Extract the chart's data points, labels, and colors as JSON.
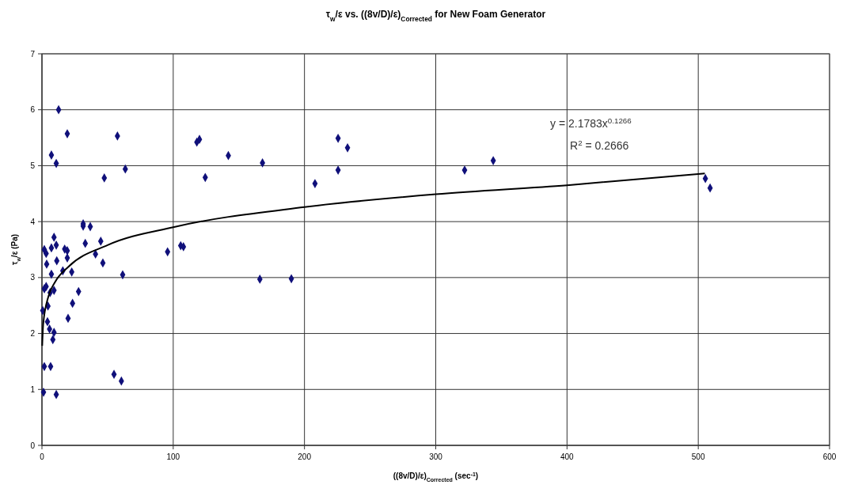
{
  "chart_data": {
    "type": "scatter",
    "title": "τ$_{w}$/ε  vs. ((8v/D)/ε)$_{Corrected}$ for New Foam Generator",
    "xlabel": "((8v/D)/ε)$_{Corrected}$ (sec$^{-1}$)",
    "ylabel": "τ$_{w}$/ε (Pa)",
    "xlim": [
      0,
      600
    ],
    "xticks": [
      0,
      100,
      200,
      300,
      400,
      500,
      600
    ],
    "ylim": [
      0,
      7
    ],
    "yticks": [
      0,
      1,
      2,
      3,
      4,
      5,
      6,
      7
    ],
    "grid": true,
    "annotations": [
      "y = 2.1783x$^{0.1266}$",
      "R$^{2}$ = 0.2666"
    ],
    "series": [
      {
        "color": "#10107a",
        "marker": "diamond",
        "x": [
          19.3,
          57.5,
          7.2,
          10.9,
          63.5,
          47.5,
          118,
          120,
          124.4,
          31.4,
          31.4,
          36.8,
          9.2,
          1.8,
          3.2,
          7.2,
          10.9,
          17.3,
          19.3,
          33,
          44.8,
          40.8,
          19.3,
          11.3,
          3.6,
          46.4,
          95.7,
          105.7,
          107.8,
          7.2,
          15.9,
          22.7,
          61.5,
          1.8,
          3.2,
          6.2,
          9.2,
          27.9,
          23.3,
          4.6,
          0.6,
          19.9,
          4.2,
          5.8,
          9.2,
          8.3,
          1.8,
          6.6,
          54.9,
          60.5,
          1.2,
          10.9,
          12.7,
          168,
          142,
          166,
          190,
          208,
          225.6,
          225.6,
          232.8,
          322,
          343.8,
          505.4,
          509
        ],
        "values": [
          5.57,
          5.53,
          5.19,
          5.04,
          4.94,
          4.78,
          5.42,
          5.47,
          4.79,
          3.96,
          3.92,
          3.91,
          3.72,
          3.5,
          3.43,
          3.53,
          3.58,
          3.51,
          3.48,
          3.61,
          3.65,
          3.42,
          3.35,
          3.3,
          3.24,
          3.26,
          3.46,
          3.57,
          3.55,
          3.06,
          3.12,
          3.1,
          3.05,
          2.8,
          2.84,
          2.73,
          2.77,
          2.75,
          2.54,
          2.49,
          2.41,
          2.27,
          2.21,
          2.08,
          2.02,
          1.89,
          1.41,
          1.41,
          1.27,
          1.15,
          0.95,
          0.91,
          6.0,
          5.05,
          5.18,
          2.97,
          2.98,
          4.68,
          5.49,
          4.92,
          5.32,
          4.92,
          5.09,
          4.77,
          4.6
        ]
      },
      {
        "type": "line",
        "color": "#000000",
        "marker": "none",
        "line_style": "solid",
        "x": [
          0.2,
          1,
          5,
          10,
          20,
          50,
          100,
          200,
          300,
          400,
          505
        ],
        "values": [
          1.78,
          2.18,
          2.67,
          2.92,
          3.19,
          3.58,
          3.9,
          4.26,
          4.49,
          4.65,
          4.86
        ]
      }
    ]
  }
}
